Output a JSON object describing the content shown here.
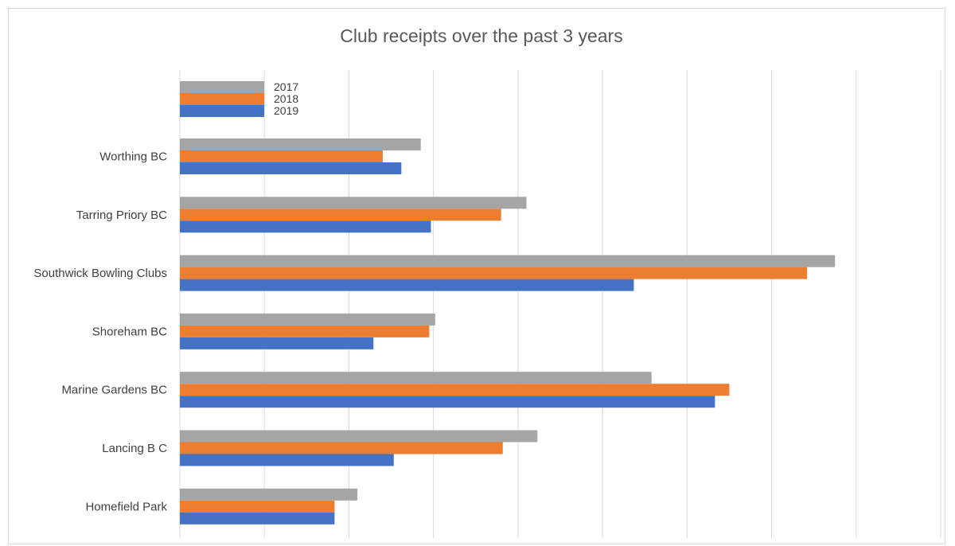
{
  "chart_data": {
    "type": "bar",
    "orientation": "horizontal",
    "title": "Club receipts over the past 3 years",
    "xlabel": "",
    "ylabel": "",
    "categories": [
      "Worthing BC",
      "Tarring Priory BC",
      "Southwick Bowling Clubs",
      "Shoreham BC",
      "Marine Gardens BC",
      "Lancing B C",
      "Homefield Park"
    ],
    "series": [
      {
        "name": "2017",
        "color": "#a5a5a5",
        "values": [
          2.85,
          4.1,
          7.75,
          3.02,
          5.58,
          4.23,
          2.1
        ]
      },
      {
        "name": "2018",
        "color": "#ed7d31",
        "values": [
          2.4,
          3.8,
          7.42,
          2.95,
          6.5,
          3.82,
          1.83
        ]
      },
      {
        "name": "2019",
        "color": "#4472c4",
        "values": [
          2.62,
          2.97,
          5.37,
          2.29,
          6.33,
          2.53,
          1.83
        ]
      }
    ],
    "xlim": [
      0,
      9
    ],
    "grid": true,
    "legend": "top-left"
  }
}
